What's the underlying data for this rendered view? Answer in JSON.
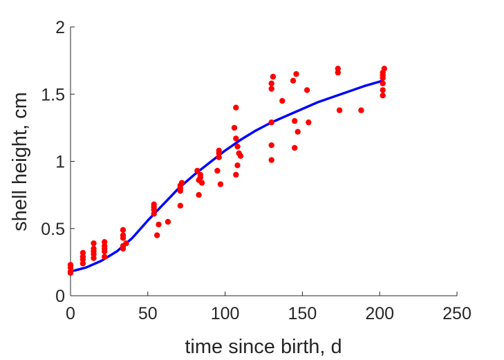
{
  "chart_data": {
    "type": "scatter",
    "xlabel": "time since birth, d",
    "ylabel": "shell height, cm",
    "xlim": [
      0,
      250
    ],
    "ylim": [
      0,
      2
    ],
    "xticks": [
      0,
      50,
      100,
      150,
      200,
      250
    ],
    "yticks": [
      0,
      0.5,
      1,
      1.5,
      2
    ],
    "ytick_labels": [
      "0",
      "0.5",
      "1",
      "1.5",
      "2"
    ],
    "grid": false,
    "series": [
      {
        "kind": "scatter",
        "color": "#ff0000",
        "points": [
          [
            0,
            0.17
          ],
          [
            0,
            0.18
          ],
          [
            0,
            0.21
          ],
          [
            0,
            0.23
          ],
          [
            8,
            0.24
          ],
          [
            8,
            0.27
          ],
          [
            8,
            0.29
          ],
          [
            8,
            0.32
          ],
          [
            15,
            0.28
          ],
          [
            15,
            0.31
          ],
          [
            15,
            0.33
          ],
          [
            15,
            0.35
          ],
          [
            15,
            0.39
          ],
          [
            22,
            0.29
          ],
          [
            22,
            0.33
          ],
          [
            22,
            0.35
          ],
          [
            22,
            0.37
          ],
          [
            22,
            0.4
          ],
          [
            34,
            0.35
          ],
          [
            34,
            0.37
          ],
          [
            34,
            0.43
          ],
          [
            34,
            0.45
          ],
          [
            34,
            0.49
          ],
          [
            36,
            0.39
          ],
          [
            54,
            0.61
          ],
          [
            54,
            0.64
          ],
          [
            54,
            0.66
          ],
          [
            54,
            0.68
          ],
          [
            56,
            0.45
          ],
          [
            57,
            0.53
          ],
          [
            63,
            0.55
          ],
          [
            71,
            0.67
          ],
          [
            71,
            0.78
          ],
          [
            71,
            0.8
          ],
          [
            71,
            0.82
          ],
          [
            72,
            0.84
          ],
          [
            82,
            0.93
          ],
          [
            83,
            0.75
          ],
          [
            83,
            0.86
          ],
          [
            84,
            0.88
          ],
          [
            84,
            0.9
          ],
          [
            85,
            0.84
          ],
          [
            95,
            0.93
          ],
          [
            96,
            1.03
          ],
          [
            96,
            1.06
          ],
          [
            96,
            1.08
          ],
          [
            97,
            0.83
          ],
          [
            106,
            1.25
          ],
          [
            107,
            0.9
          ],
          [
            107,
            1.17
          ],
          [
            107,
            1.4
          ],
          [
            108,
            0.97
          ],
          [
            108,
            1.11
          ],
          [
            109,
            1.06
          ],
          [
            110,
            1.04
          ],
          [
            130,
            1.01
          ],
          [
            130,
            1.12
          ],
          [
            130,
            1.29
          ],
          [
            130,
            1.54
          ],
          [
            130,
            1.58
          ],
          [
            131,
            1.63
          ],
          [
            137,
            1.45
          ],
          [
            144,
            1.6
          ],
          [
            145,
            1.1
          ],
          [
            145,
            1.3
          ],
          [
            146,
            1.65
          ],
          [
            147,
            1.22
          ],
          [
            153,
            1.53
          ],
          [
            154,
            1.29
          ],
          [
            173,
            1.66
          ],
          [
            173,
            1.69
          ],
          [
            174,
            1.38
          ],
          [
            188,
            1.38
          ],
          [
            202,
            1.49
          ],
          [
            202,
            1.53
          ],
          [
            202,
            1.58
          ],
          [
            202,
            1.62
          ],
          [
            202,
            1.64
          ],
          [
            202,
            1.66
          ],
          [
            203,
            1.69
          ]
        ]
      },
      {
        "kind": "line",
        "color": "#0000ff",
        "points": [
          [
            0,
            0.18
          ],
          [
            10,
            0.21
          ],
          [
            20,
            0.26
          ],
          [
            30,
            0.33
          ],
          [
            40,
            0.43
          ],
          [
            50,
            0.56
          ],
          [
            60,
            0.68
          ],
          [
            70,
            0.8
          ],
          [
            80,
            0.9
          ],
          [
            90,
            0.99
          ],
          [
            100,
            1.08
          ],
          [
            110,
            1.16
          ],
          [
            120,
            1.23
          ],
          [
            130,
            1.29
          ],
          [
            140,
            1.34
          ],
          [
            150,
            1.39
          ],
          [
            160,
            1.44
          ],
          [
            170,
            1.48
          ],
          [
            180,
            1.52
          ],
          [
            190,
            1.56
          ],
          [
            202,
            1.6
          ]
        ]
      }
    ]
  }
}
